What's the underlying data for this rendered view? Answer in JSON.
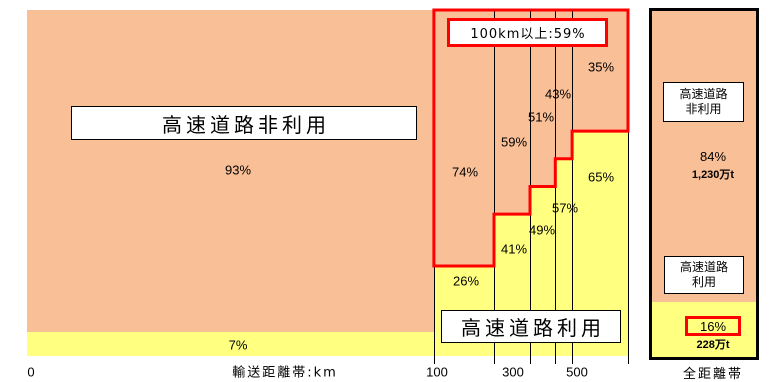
{
  "chart_data": [
    {
      "type": "bar",
      "stacked": true,
      "variable_width": true,
      "xlabel": "輸送距離帯:km",
      "x_tick_labels": [
        "0",
        "100",
        "300",
        "500"
      ],
      "band_width_share": [
        67.7,
        10.0,
        6.0,
        4.2,
        2.8,
        9.3
      ],
      "ylim": [
        0,
        100
      ],
      "unit": "%",
      "grid": false,
      "series": [
        {
          "name": "高速道路非利用",
          "values": [
            93,
            74,
            59,
            51,
            43,
            35
          ],
          "color": "#F9BF97"
        },
        {
          "name": "高速道路利用",
          "values": [
            7,
            26,
            41,
            49,
            57,
            65
          ],
          "color": "#FFFF80"
        }
      ],
      "highlighted_bands": [
        false,
        true,
        true,
        true,
        true,
        true
      ],
      "highlight_label": "100km以上:59%",
      "highlight_color": "#FF0000"
    },
    {
      "type": "bar",
      "stacked": true,
      "xlabel": "全距離帯",
      "ylim": [
        0,
        100
      ],
      "unit": "%",
      "highlight_color": "#FF0000",
      "segments": [
        {
          "label_lines": [
            "高速道路",
            "非利用"
          ],
          "value": 84,
          "amount": "1,230万t",
          "color": "#F9BF97"
        },
        {
          "label_lines": [
            "高速道路",
            "利用"
          ],
          "value": 16,
          "amount": "228万t",
          "color": "#FFFF80",
          "highlighted": true
        }
      ]
    }
  ]
}
